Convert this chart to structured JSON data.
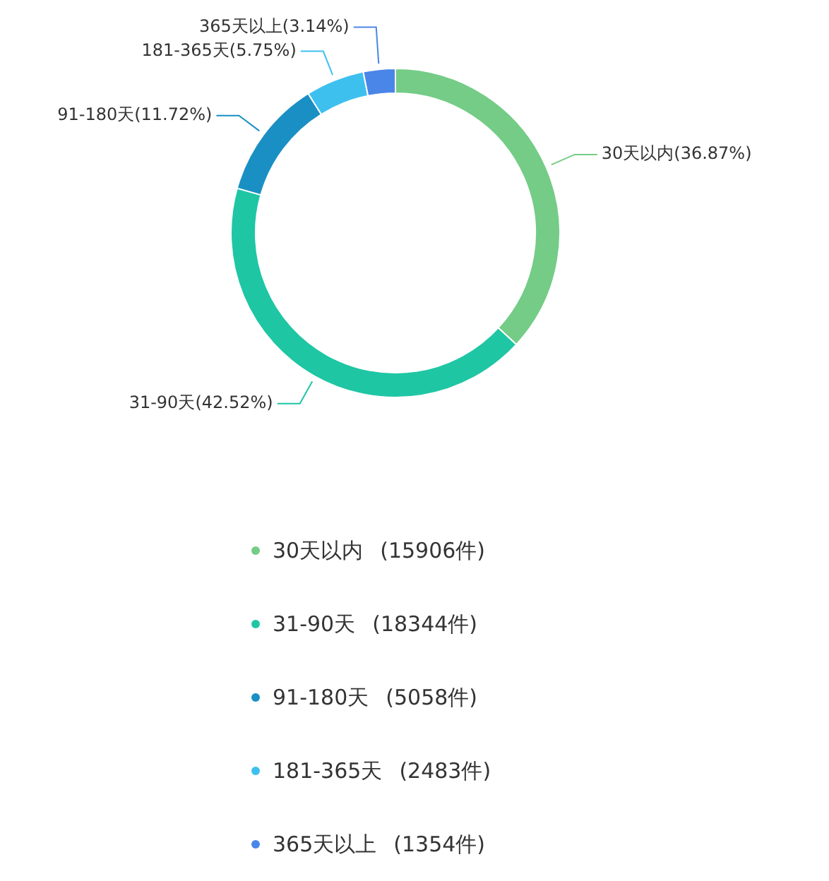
{
  "chart_data": {
    "type": "donut",
    "categories": [
      "30天以内",
      "31-90天",
      "91-180天",
      "181-365天",
      "365天以上"
    ],
    "values": [
      15906,
      18344,
      5058,
      2483,
      1354
    ],
    "colors": [
      "#74cc86",
      "#1ec6a4",
      "#1a8fc4",
      "#3ec0ef",
      "#4a86e8"
    ],
    "value_labels": [
      "(15906件)",
      "(18344件)",
      "(5058件)",
      "(2483件)",
      "(1354件)"
    ],
    "legend": "bottom",
    "annotations": [
      {
        "text": "30天以内(36.87%)",
        "x": "30天以内"
      },
      {
        "text": "31-90天(42.52%)",
        "x": "31-90天"
      },
      {
        "text": "91-180天(11.72%)",
        "x": "91-180天"
      },
      {
        "text": "181-365天(5.75%)",
        "x": "181-365天"
      },
      {
        "text": "365天以上(3.14%)",
        "x": "365天以上"
      }
    ]
  }
}
